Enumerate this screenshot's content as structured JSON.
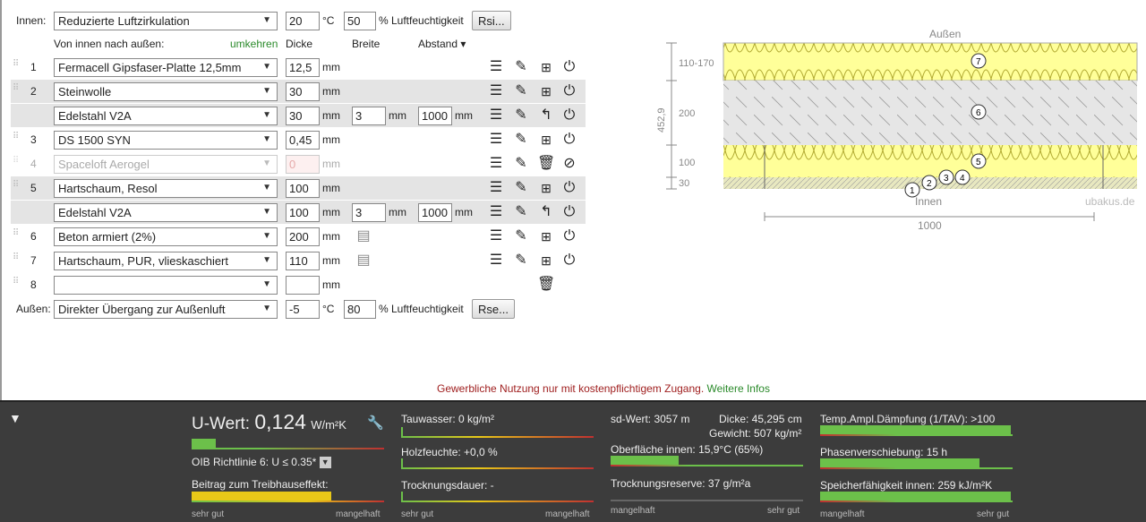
{
  "inside": {
    "label": "Innen:",
    "select": "Reduzierte Luftzirkulation",
    "temp": "20",
    "temp_unit": "°C",
    "humidity": "50",
    "humidity_label": "% Luftfeuchtigkeit",
    "button": "Rsi..."
  },
  "headers": {
    "direction": "Von innen nach außen:",
    "reverse": "umkehren",
    "thickness": "Dicke",
    "width": "Breite",
    "spacing": "Abstand ▾"
  },
  "layers": [
    {
      "num": "1",
      "name": "Fermacell Gipsfaser-Platte 12,5mm",
      "d": "12,5",
      "unit": "mm"
    },
    {
      "num": "2",
      "name": "Steinwolle",
      "d": "30",
      "unit": "mm"
    },
    {
      "num": "",
      "name": "Edelstahl V2A",
      "d": "30",
      "unit": "mm",
      "w": "3",
      "a": "1000",
      "wunit": "mm",
      "aunit": "mm"
    },
    {
      "num": "3",
      "name": "DS 1500 SYN",
      "d": "0,45",
      "unit": "mm"
    },
    {
      "num": "4",
      "name": "Spaceloft Aerogel",
      "d": "0",
      "unit": "mm"
    },
    {
      "num": "5",
      "name": "Hartschaum, Resol",
      "d": "100",
      "unit": "mm"
    },
    {
      "num": "",
      "name": "Edelstahl V2A",
      "d": "100",
      "unit": "mm",
      "w": "3",
      "a": "1000",
      "wunit": "mm",
      "aunit": "mm"
    },
    {
      "num": "6",
      "name": "Beton armiert (2%)",
      "d": "200",
      "unit": "mm"
    },
    {
      "num": "7",
      "name": "Hartschaum, PUR, vlieskaschiert",
      "d": "110",
      "unit": "mm"
    },
    {
      "num": "8",
      "name": "",
      "d": "",
      "unit": "mm"
    }
  ],
  "outside": {
    "label": "Außen:",
    "select": "Direkter Übergang zur Außenluft",
    "temp": "-5",
    "temp_unit": "°C",
    "humidity": "80",
    "humidity_label": "% Luftfeuchtigkeit",
    "button": "Rse..."
  },
  "diagram": {
    "top": "Außen",
    "bottom": "Innen",
    "watermark": "ubakus.de",
    "total": "452,9",
    "width": "1000",
    "dims": [
      "110-170",
      "200",
      "100",
      "30"
    ],
    "markers": [
      "1",
      "2",
      "3",
      "4",
      "5",
      "6",
      "7"
    ]
  },
  "notice": {
    "text": "Gewerbliche Nutzung nur mit kostenpflichtigem Zugang.",
    "link": "Weitere Infos"
  },
  "results": {
    "u_label": "U-Wert:",
    "u_value": "0,124",
    "u_unit": "W/m²K",
    "oib": "OIB Richtlinie 6: U ≤ 0.35*",
    "greenhouse": "Beitrag zum Treibhauseffekt:",
    "tauwasser": "Tauwasser: 0 kg/m²",
    "holzfeuchte": "Holzfeuchte: +0,0 %",
    "trocknungsdauer": "Trocknungsdauer: -",
    "sd": "sd-Wert: 3057 m",
    "dicke": "Dicke: 45,295 cm",
    "gewicht": "Gewicht: 507 kg/m²",
    "oberflaeche": "Oberfläche innen: 15,9°C (65%)",
    "reserve": "Trocknungsreserve: 37 g/m²a",
    "tav": "Temp.Ampl.Dämpfung (1/TAV): >100",
    "phase": "Phasenverschiebung: 15 h",
    "speicher": "Speicherfähigkeit innen: 259 kJ/m²K",
    "good": "sehr gut",
    "bad": "mangelhaft"
  }
}
